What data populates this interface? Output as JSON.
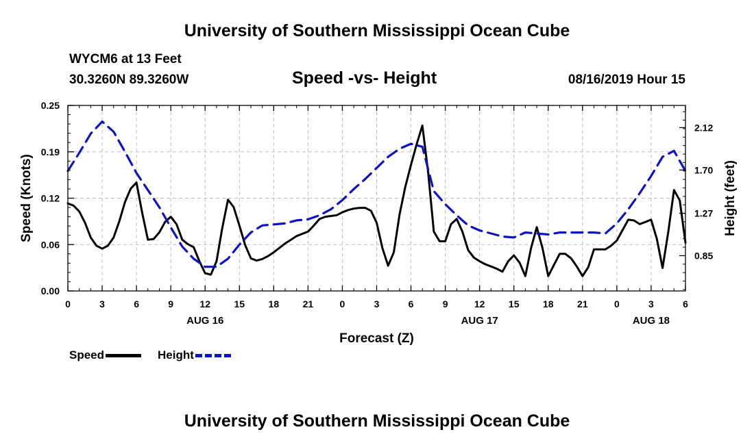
{
  "header": {
    "title": "University of Southern Mississippi Ocean Cube",
    "station": "WYCM6 at 13 Feet",
    "coords": "30.3260N 89.3260W",
    "date": "08/16/2019 Hour 15"
  },
  "footer": {
    "title": "University of Southern Mississippi Ocean Cube"
  },
  "legend": {
    "speed_label": "Speed",
    "height_label": "Height"
  },
  "colors": {
    "speed": "#000000",
    "height": "#0a13c8",
    "grid": "#bdbdbd"
  },
  "chart_data": {
    "type": "line",
    "title": "Speed -vs- Height",
    "xlabel": "Forecast (Z)",
    "ylabel": "Speed (Knots)",
    "y2label": "Height (feet)",
    "x_range": [
      0,
      60
    ],
    "x_ticks": [
      {
        "x": 0,
        "label": "0"
      },
      {
        "x": 3,
        "label": "3"
      },
      {
        "x": 6,
        "label": "6"
      },
      {
        "x": 9,
        "label": "9"
      },
      {
        "x": 12,
        "label": "12"
      },
      {
        "x": 15,
        "label": "15"
      },
      {
        "x": 18,
        "label": "18"
      },
      {
        "x": 21,
        "label": "21"
      },
      {
        "x": 24,
        "label": "0"
      },
      {
        "x": 27,
        "label": "3"
      },
      {
        "x": 30,
        "label": "6"
      },
      {
        "x": 33,
        "label": "9"
      },
      {
        "x": 36,
        "label": "12"
      },
      {
        "x": 39,
        "label": "15"
      },
      {
        "x": 42,
        "label": "18"
      },
      {
        "x": 45,
        "label": "21"
      },
      {
        "x": 48,
        "label": "0"
      },
      {
        "x": 51,
        "label": "3"
      },
      {
        "x": 54,
        "label": "6"
      }
    ],
    "date_labels": [
      {
        "x": 12,
        "label": "AUG 16"
      },
      {
        "x": 36,
        "label": "AUG 17"
      },
      {
        "x": 51,
        "label": "AUG 18"
      }
    ],
    "ylim": [
      0,
      0.25
    ],
    "y_ticks": [
      {
        "v": 0,
        "label": "0.00"
      },
      {
        "v": 0.0625,
        "label": "0.06"
      },
      {
        "v": 0.125,
        "label": "0.12"
      },
      {
        "v": 0.1875,
        "label": "0.19"
      },
      {
        "v": 0.25,
        "label": "0.25"
      }
    ],
    "y2lim": [
      0.5,
      2.34
    ],
    "y2_ticks": [
      {
        "v": 0.85,
        "label": "0.85"
      },
      {
        "v": 1.27,
        "label": "1.27"
      },
      {
        "v": 1.7,
        "label": "1.70"
      },
      {
        "v": 2.12,
        "label": "2.12"
      }
    ],
    "series": [
      {
        "name": "Speed",
        "axis": "left",
        "style": "solid",
        "x": [
          0,
          0.5,
          1,
          1.5,
          2,
          2.5,
          3,
          3.5,
          4,
          4.5,
          5,
          5.5,
          6,
          6.5,
          7,
          7.5,
          8,
          8.5,
          9,
          9.5,
          10,
          10.5,
          11,
          11.5,
          12,
          12.5,
          13,
          13.5,
          14,
          14.5,
          15,
          15.5,
          16,
          16.5,
          17,
          17.5,
          18,
          18.5,
          19,
          19.5,
          20,
          20.5,
          21,
          21.5,
          22,
          22.5,
          23,
          23.5,
          24,
          24.5,
          25,
          25.5,
          26,
          26.5,
          27,
          27.5,
          28,
          28.5,
          29,
          29.5,
          30,
          30.5,
          31,
          31.5,
          32,
          32.5,
          33,
          33.5,
          34,
          34.5,
          35,
          35.5,
          36,
          36.5,
          37,
          37.5,
          38,
          38.5,
          39,
          39.5,
          40,
          40.5,
          41,
          41.5,
          42,
          42.5,
          43,
          43.5,
          44,
          44.5,
          45,
          45.5,
          46,
          46.5,
          47,
          47.5,
          48,
          48.5,
          49,
          49.5,
          50,
          50.5,
          51,
          51.5,
          52,
          52.5,
          53,
          53.5,
          54
        ],
        "values": [
          0.118,
          0.115,
          0.107,
          0.092,
          0.072,
          0.061,
          0.057,
          0.061,
          0.072,
          0.094,
          0.12,
          0.138,
          0.146,
          0.105,
          0.069,
          0.07,
          0.079,
          0.093,
          0.1,
          0.09,
          0.069,
          0.063,
          0.059,
          0.04,
          0.024,
          0.022,
          0.04,
          0.085,
          0.123,
          0.113,
          0.088,
          0.062,
          0.044,
          0.041,
          0.043,
          0.047,
          0.052,
          0.058,
          0.064,
          0.069,
          0.074,
          0.077,
          0.08,
          0.088,
          0.097,
          0.1,
          0.101,
          0.102,
          0.106,
          0.109,
          0.111,
          0.112,
          0.112,
          0.108,
          0.092,
          0.058,
          0.034,
          0.052,
          0.103,
          0.14,
          0.17,
          0.198,
          0.223,
          0.16,
          0.08,
          0.067,
          0.067,
          0.09,
          0.097,
          0.08,
          0.055,
          0.045,
          0.04,
          0.036,
          0.033,
          0.03,
          0.026,
          0.04,
          0.048,
          0.038,
          0.02,
          0.058,
          0.086,
          0.058,
          0.02,
          0.035,
          0.05,
          0.05,
          0.044,
          0.033,
          0.02,
          0.032,
          0.056,
          0.056,
          0.056,
          0.061,
          0.068,
          0.082,
          0.096,
          0.095,
          0.09,
          0.093,
          0.096,
          0.07,
          0.031,
          0.08,
          0.136,
          0.122,
          0.065
        ]
      },
      {
        "name": "Height",
        "axis": "right",
        "style": "dashed",
        "x": [
          0,
          1,
          2,
          3,
          4,
          5,
          6,
          7,
          8,
          9,
          10,
          11,
          12,
          13,
          14,
          15,
          16,
          17,
          18,
          19,
          20,
          21,
          22,
          23,
          24,
          25,
          26,
          27,
          28,
          29,
          30,
          31,
          32,
          33,
          34,
          35,
          36,
          37,
          38,
          39,
          40,
          41,
          42,
          43,
          44,
          45,
          46,
          47,
          48,
          49,
          50,
          51,
          52,
          53,
          54
        ],
        "values": [
          1.69,
          1.87,
          2.06,
          2.18,
          2.08,
          1.88,
          1.67,
          1.5,
          1.33,
          1.13,
          0.94,
          0.82,
          0.74,
          0.74,
          0.82,
          0.96,
          1.08,
          1.15,
          1.16,
          1.17,
          1.2,
          1.21,
          1.25,
          1.31,
          1.4,
          1.51,
          1.61,
          1.72,
          1.83,
          1.91,
          1.96,
          1.93,
          1.49,
          1.36,
          1.25,
          1.15,
          1.1,
          1.07,
          1.04,
          1.03,
          1.08,
          1.07,
          1.06,
          1.08,
          1.08,
          1.08,
          1.08,
          1.07,
          1.17,
          1.31,
          1.47,
          1.64,
          1.83,
          1.89,
          1.69
        ]
      }
    ],
    "grid": true,
    "legend": "bottom-left"
  }
}
